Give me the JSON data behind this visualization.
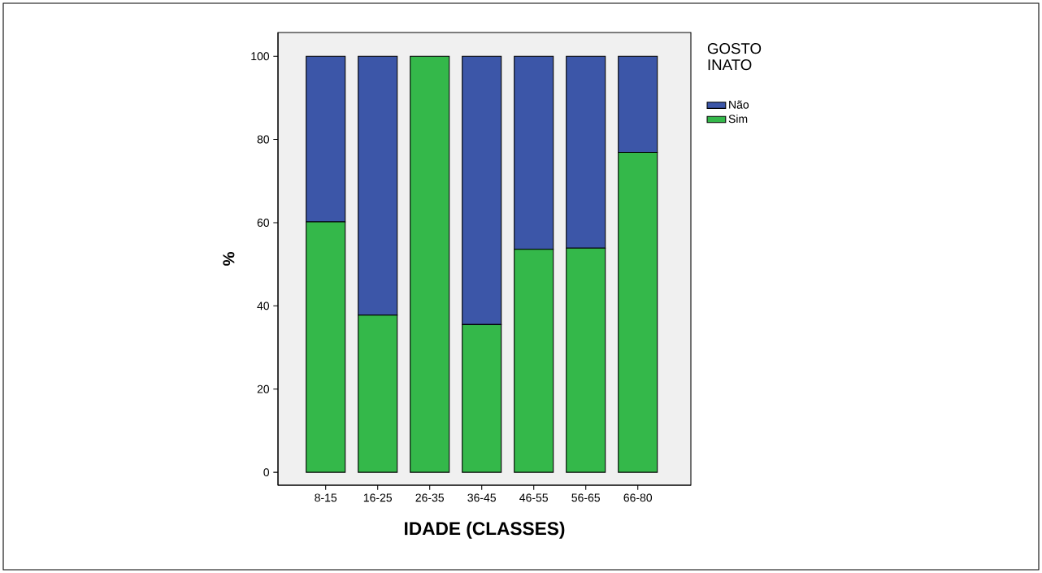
{
  "chart_data": {
    "type": "bar",
    "stacked": true,
    "xlabel": "IDADE (CLASSES)",
    "ylabel": "%",
    "legend_title": "GOSTO INATO",
    "legend": "top right",
    "categories": [
      "8-15",
      "16-25",
      "26-35",
      "36-45",
      "46-55",
      "56-65",
      "66-80"
    ],
    "series": [
      {
        "name": "Sim",
        "color": "#34b84a",
        "values": [
          60.2,
          37.8,
          100,
          35.5,
          53.6,
          53.9,
          76.9
        ]
      },
      {
        "name": "Não",
        "color": "#3c56a8",
        "values": [
          39.8,
          62.2,
          0,
          64.5,
          46.4,
          46.1,
          23.1
        ]
      }
    ],
    "ylim": [
      -3.1,
      105.7
    ],
    "yticks": [
      0,
      20,
      40,
      60,
      80,
      100
    ]
  }
}
